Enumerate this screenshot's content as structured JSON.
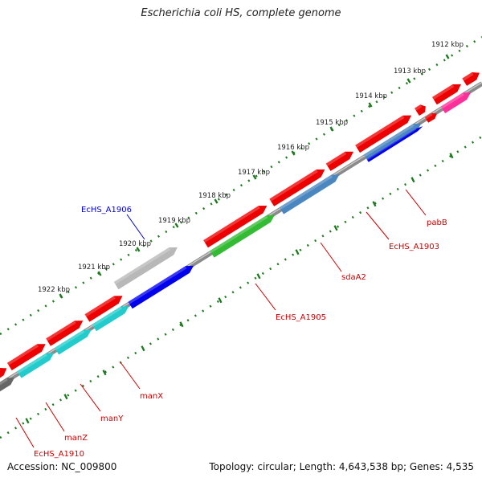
{
  "title": "Escherichia coli HS, complete genome",
  "footer": {
    "accession": "Accession: NC_009800",
    "summary": "Topology: circular; Length: 4,643,538 bp; Genes: 4,535"
  },
  "ruler": {
    "ticks": [
      {
        "label": "1912 kbp",
        "kbp": 1912
      },
      {
        "label": "1913 kbp",
        "kbp": 1913
      },
      {
        "label": "1914 kbp",
        "kbp": 1914
      },
      {
        "label": "1915 kbp",
        "kbp": 1915
      },
      {
        "label": "1916 kbp",
        "kbp": 1916
      },
      {
        "label": "1917 kbp",
        "kbp": 1917
      },
      {
        "label": "1918 kbp",
        "kbp": 1918
      },
      {
        "label": "1919 kbp",
        "kbp": 1919
      },
      {
        "label": "1920 kbp",
        "kbp": 1920
      },
      {
        "label": "1921 kbp",
        "kbp": 1921
      },
      {
        "label": "1922 kbp",
        "kbp": 1922
      }
    ]
  },
  "colors": {
    "cds": "#ee0000",
    "trna": "#ff2f9a",
    "blast_blue": "#0000ee",
    "blast_steel": "#4a86c0",
    "blast_green": "#33bb33",
    "blast_cyan": "#22cccc",
    "blast_gray": "#b8b8b8",
    "blast_dark": "#666666",
    "backbone": "#888888",
    "ruler": "#1e7a1e",
    "label_red": "#cc0000",
    "label_blue": "#0000cc"
  },
  "gene_labels": [
    {
      "id": "pabB",
      "text": "pabB",
      "color": "red"
    },
    {
      "id": "EcHS_A1903",
      "text": "EcHS_A1903",
      "color": "red"
    },
    {
      "id": "sdaA2",
      "text": "sdaA2",
      "color": "red"
    },
    {
      "id": "EcHS_A1905",
      "text": "EcHS_A1905",
      "color": "red"
    },
    {
      "id": "EcHS_A1906",
      "text": "EcHS_A1906",
      "color": "blue"
    },
    {
      "id": "manX",
      "text": "manX",
      "color": "red"
    },
    {
      "id": "manY",
      "text": "manY",
      "color": "red"
    },
    {
      "id": "manZ",
      "text": "manZ",
      "color": "red"
    },
    {
      "id": "EcHS_A1910",
      "text": "EcHS_A1910",
      "color": "red"
    }
  ]
}
